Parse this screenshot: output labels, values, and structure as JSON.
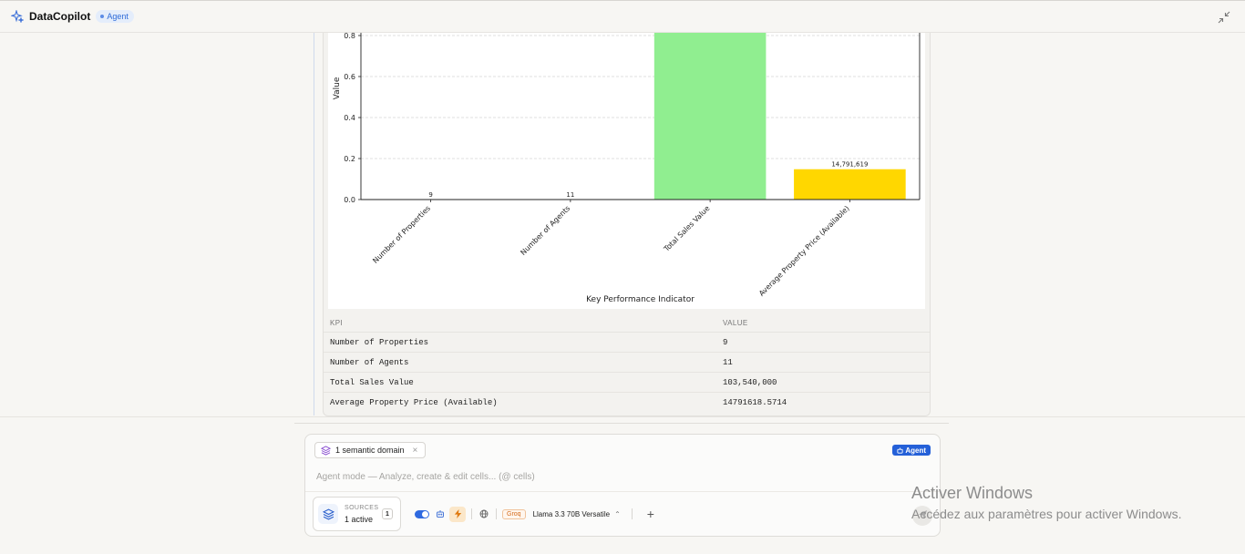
{
  "header": {
    "app_title": "DataCopilot",
    "badge": "Agent",
    "collapse_icon": "collapse-icon"
  },
  "chart_data": {
    "type": "bar",
    "categories": [
      "Number of Properties",
      "Number of Agents",
      "Total Sales Value",
      "Average Property Price (Available)"
    ],
    "values": [
      9,
      11,
      103540000,
      14791618.5714
    ],
    "value_labels": [
      "9",
      "11",
      "",
      "14,791,619"
    ],
    "colors": [
      "#87ceeb",
      "#f08080",
      "#90ee90",
      "#ffd700"
    ],
    "xlabel": "Key Performance Indicator",
    "ylabel": "Value",
    "y_ticks": [
      "0.0",
      "0.2",
      "0.4",
      "0.6",
      "0.8"
    ],
    "visible_ylim": [
      0,
      0.8
    ],
    "scale_note": "axis visible portion only (scaled 1e8)",
    "grid": true
  },
  "table": {
    "headers": [
      "KPI",
      "VALUE"
    ],
    "rows": [
      [
        "Number of Properties",
        "9"
      ],
      [
        "Number of Agents",
        "11"
      ],
      [
        "Total Sales Value",
        "103,540,000"
      ],
      [
        "Average Property Price (Available)",
        "14791618.5714"
      ]
    ]
  },
  "composer": {
    "chip_label": "1 semantic domain",
    "chip_close": "×",
    "agent_pill": "Agent",
    "placeholder": "Agent mode — Analyze, create & edit cells... (@ cells)",
    "sources_label": "SOURCES",
    "sources_count": "1 active",
    "sources_num": "1",
    "model_provider": "Groq",
    "model_name": "Llama 3.3 70B Versatile",
    "plus": "+"
  },
  "watermark": {
    "title": "Activer Windows",
    "subtitle": "Accédez aux paramètres pour activer Windows."
  }
}
